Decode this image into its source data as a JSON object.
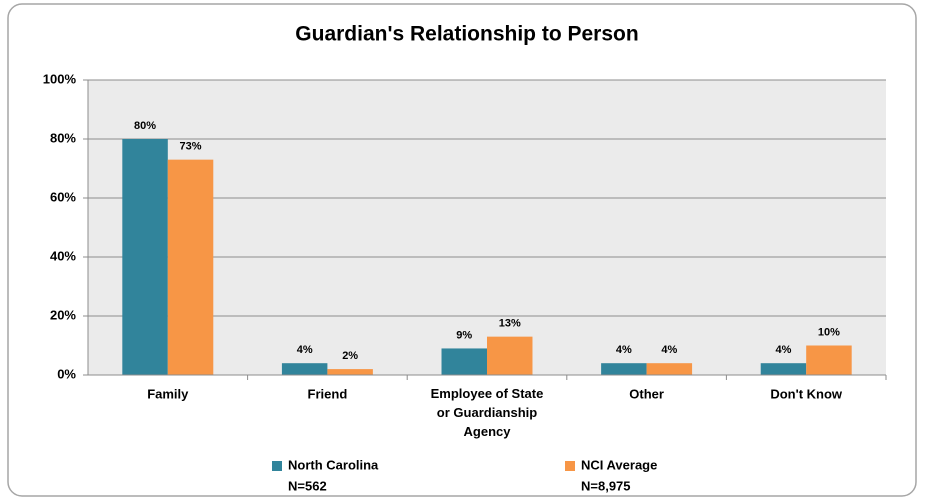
{
  "chart_data": {
    "type": "bar",
    "title": "Guardian's Relationship to Person",
    "categories": [
      "Family",
      "Friend",
      "Employee of State or Guardianship Agency",
      "Other",
      "Don't Know"
    ],
    "series": [
      {
        "name": "North Carolina",
        "sample_size": "N=562",
        "color": "#31849b",
        "values": [
          80,
          4,
          9,
          4,
          4
        ],
        "value_labels": [
          "80%",
          "4%",
          "9%",
          "4%",
          "4%"
        ]
      },
      {
        "name": "NCI Average",
        "sample_size": "N=8,975",
        "color": "#f79646",
        "values": [
          73,
          2,
          13,
          4,
          10
        ],
        "value_labels": [
          "73%",
          "2%",
          "13%",
          "4%",
          "10%"
        ]
      }
    ],
    "ylim": [
      0,
      100
    ],
    "yticks": [
      {
        "value": 0,
        "label": "0%"
      },
      {
        "value": 20,
        "label": "20%"
      },
      {
        "value": 40,
        "label": "40%"
      },
      {
        "value": 60,
        "label": "60%"
      },
      {
        "value": 80,
        "label": "80%"
      },
      {
        "value": 100,
        "label": "100%"
      }
    ],
    "grid": true,
    "legend": "bottom"
  }
}
